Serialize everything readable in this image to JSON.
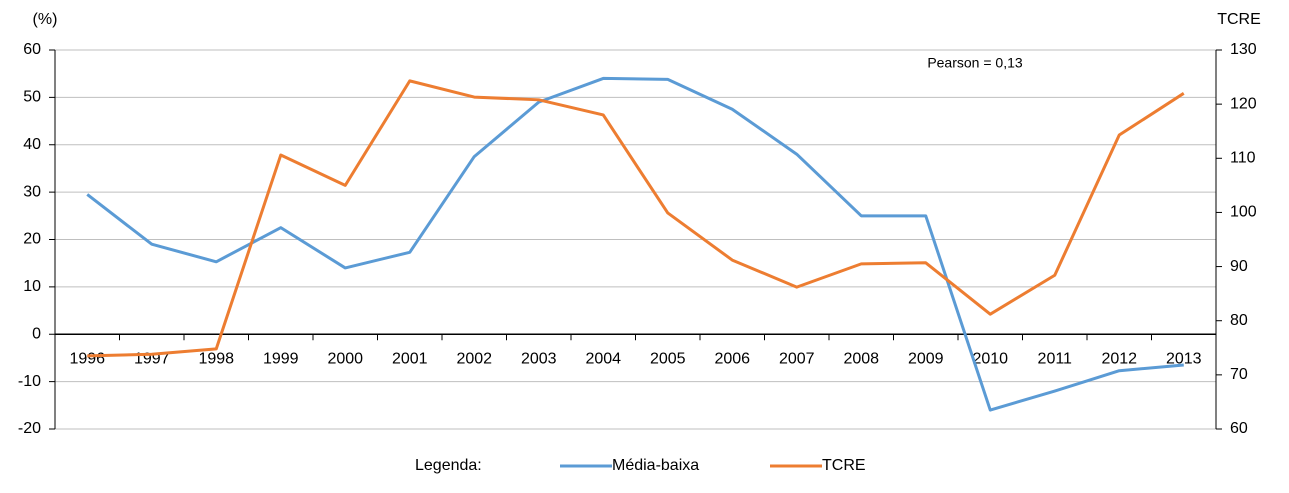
{
  "chart_data": {
    "type": "line",
    "y_label": "(%)",
    "y2_label": "TCRE",
    "annotation": "Pearson = 0,13",
    "categories": [
      "1996",
      "1997",
      "1998",
      "1999",
      "2000",
      "2001",
      "2002",
      "2003",
      "2004",
      "2005",
      "2006",
      "2007",
      "2008",
      "2009",
      "2010",
      "2011",
      "2012",
      "2013"
    ],
    "series": [
      {
        "name": "Média-baixa",
        "color": "#5b9bd5",
        "values": [
          29.5,
          19,
          15.3,
          22.5,
          14,
          17.3,
          37.5,
          49,
          54,
          53.8,
          47.5,
          38,
          25,
          25,
          -16,
          -12,
          -7.7,
          -6.5
        ]
      },
      {
        "name": "TCRE",
        "color": "#ed7d31",
        "axis": "y2",
        "values": [
          73.5,
          73.8,
          74.8,
          110.6,
          105,
          124.3,
          121.3,
          120.8,
          118,
          99.9,
          91.2,
          86.2,
          90.5,
          90.7,
          81.2,
          88.4,
          114.3,
          122
        ]
      }
    ],
    "ylim": [
      -20,
      60
    ],
    "yticks": [
      -20,
      -10,
      0,
      10,
      20,
      30,
      40,
      50,
      60
    ],
    "y2lim": [
      60,
      130
    ],
    "y2ticks": [
      60,
      70,
      80,
      90,
      100,
      110,
      120,
      130
    ],
    "grid": true,
    "legend_title": "Legenda:",
    "legend": "bottom"
  }
}
